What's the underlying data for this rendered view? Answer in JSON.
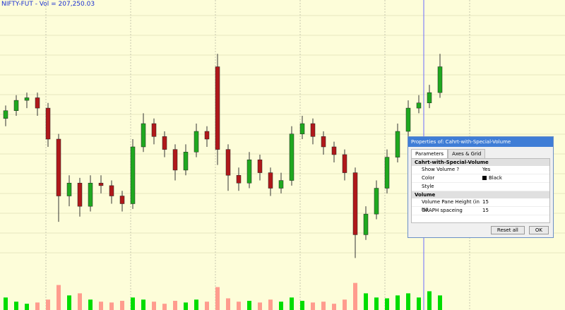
{
  "chart_data": {
    "type": "candlestick",
    "title": "NIFTY-FUT - Vol = 207,250.03",
    "open": [
      58,
      61,
      65,
      66,
      62,
      50,
      28,
      33,
      24,
      33,
      32,
      28,
      25,
      47,
      56,
      51,
      46,
      38,
      45,
      53,
      78,
      46,
      36,
      33,
      42,
      37,
      31,
      34,
      52,
      56,
      51,
      47,
      44,
      37,
      13,
      21,
      31,
      43,
      53,
      62,
      64,
      68
    ],
    "high": [
      63,
      67,
      68,
      68,
      64,
      52,
      36,
      35,
      36,
      36,
      34,
      30,
      50,
      60,
      58,
      53,
      48,
      48,
      56,
      55,
      83,
      48,
      39,
      45,
      44,
      39,
      37,
      55,
      59,
      58,
      53,
      49,
      46,
      39,
      24,
      34,
      46,
      56,
      65,
      67,
      71,
      83
    ],
    "low": [
      55,
      59,
      62,
      59,
      47,
      18,
      24,
      20,
      22,
      29,
      25,
      22,
      23,
      45,
      48,
      43,
      34,
      36,
      43,
      47,
      40,
      30,
      30,
      31,
      34,
      28,
      29,
      32,
      50,
      48,
      44,
      41,
      34,
      4,
      11,
      19,
      29,
      41,
      51,
      60,
      62,
      66
    ],
    "close": [
      61,
      65,
      66,
      62,
      50,
      28,
      33,
      24,
      33,
      32,
      28,
      25,
      47,
      56,
      51,
      46,
      38,
      45,
      53,
      50,
      46,
      36,
      33,
      42,
      37,
      31,
      34,
      52,
      56,
      51,
      47,
      44,
      37,
      13,
      21,
      31,
      43,
      53,
      62,
      64,
      68,
      78
    ],
    "volume": [
      30,
      20,
      15,
      18,
      25,
      60,
      35,
      40,
      25,
      20,
      18,
      22,
      30,
      25,
      20,
      15,
      22,
      18,
      25,
      20,
      55,
      28,
      20,
      22,
      18,
      25,
      20,
      30,
      22,
      18,
      20,
      15,
      25,
      65,
      40,
      30,
      28,
      35,
      40,
      30,
      45,
      35
    ],
    "ylim": [
      0,
      100
    ],
    "volume_lim": [
      0,
      100
    ],
    "up_color": "#1fa81f",
    "down_color": "#b0181a",
    "volume_up_color": "#00dd00",
    "volume_down_color": "#ff9c8e"
  },
  "dialog": {
    "title": "Properties of: Cahrt-with-Special-Volume",
    "tabs": [
      "Parameters",
      "Axes & Grid"
    ],
    "groups": [
      {
        "name": "Cahrt-with-Special-Volume",
        "rows": [
          {
            "label": "Show Volume ?",
            "value": "Yes"
          },
          {
            "label": "Color",
            "value": "Black"
          },
          {
            "label": "Style"
          }
        ]
      },
      {
        "name": "Volume",
        "rows": [
          {
            "label": "Volume Pane Height (in %)",
            "value": "15"
          },
          {
            "label": "GRAPH spaceing",
            "value": "15"
          }
        ]
      }
    ],
    "buttons": [
      "Reset all",
      "OK"
    ]
  }
}
